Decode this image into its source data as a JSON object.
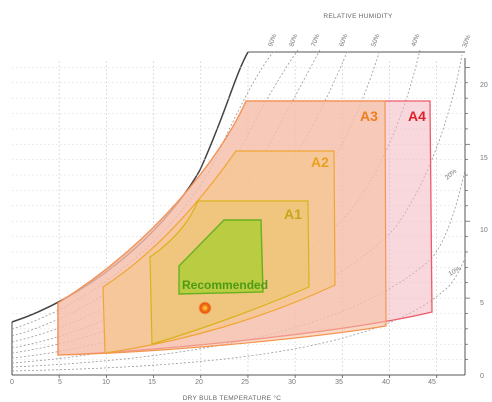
{
  "chart_data": {
    "type": "psychrometric",
    "title": "",
    "xlabel": "DRY BULB TEMPERATURE °C",
    "rh_title": "RELATIVE HUMIDITY",
    "x_ticks": [
      "0",
      "5",
      "10",
      "15",
      "20",
      "25",
      "30",
      "35",
      "40",
      "45"
    ],
    "y_ticks": [
      "0",
      "5",
      "10",
      "15",
      "20"
    ],
    "xlim": [
      0,
      48
    ],
    "ylim": [
      0,
      21
    ],
    "rh_labels": [
      "90%",
      "80%",
      "70%",
      "60%",
      "50%",
      "40%",
      "30%",
      "20%",
      "10%"
    ],
    "zones": [
      {
        "name": "A4",
        "color": "#e0202a",
        "dry_bulb_range": [
          5,
          45
        ],
        "dew_point_range_top": 19
      },
      {
        "name": "A3",
        "color": "#f07d1e",
        "dry_bulb_range": [
          5,
          40
        ],
        "dew_point_range_top": 19
      },
      {
        "name": "A2",
        "color": "#f0a020",
        "dry_bulb_range": [
          10,
          35
        ],
        "dew_point_range_top": 15
      },
      {
        "name": "A1",
        "color": "#d9b21a",
        "dry_bulb_range": [
          15,
          32
        ],
        "dew_point_range_top": 12
      },
      {
        "name": "Recommended",
        "color": "#5aaa1e",
        "dry_bulb_range": [
          18,
          27
        ],
        "dew_point_range_top": 10.5
      }
    ],
    "marker": {
      "dry_bulb": 20.5,
      "humidity_ratio": 4.6,
      "color": "#f07010"
    }
  }
}
